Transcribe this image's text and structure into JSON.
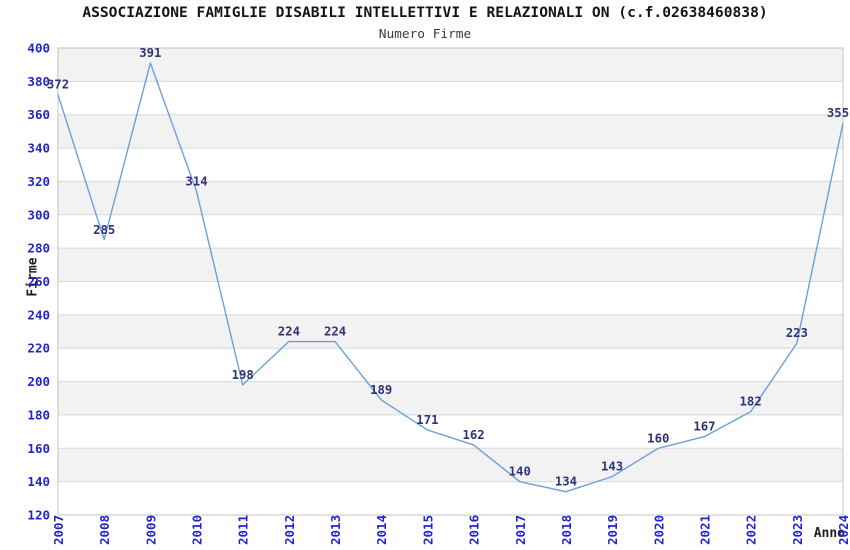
{
  "header": {
    "title": "ASSOCIAZIONE FAMIGLIE DISABILI INTELLETTIVI E RELAZIONALI ON (c.f.02638460838)",
    "subtitle": "Numero Firme"
  },
  "chart_data": {
    "type": "line",
    "title": "ASSOCIAZIONE FAMIGLIE DISABILI INTELLETTIVI E RELAZIONALI ON (c.f.02638460838)",
    "subtitle": "Numero Firme",
    "xlabel": "Anno",
    "ylabel": "Firme",
    "categories": [
      "2007",
      "2008",
      "2009",
      "2010",
      "2011",
      "2012",
      "2013",
      "2014",
      "2015",
      "2016",
      "2017",
      "2018",
      "2019",
      "2020",
      "2021",
      "2022",
      "2023",
      "2024"
    ],
    "series": [
      {
        "name": "Numero Firme",
        "values": [
          372,
          285,
          391,
          314,
          198,
          224,
          224,
          189,
          171,
          162,
          140,
          134,
          143,
          160,
          167,
          182,
          223,
          355
        ]
      }
    ],
    "ylim": [
      120,
      400
    ],
    "ytick_step": 20,
    "x_tick_rotation": -90,
    "grid": "horizontal-bands",
    "legend": "none",
    "point_labels_visible": true,
    "colors": {
      "line": "#6aa1dc",
      "tick_label": "#2424cc",
      "point_label": "#303377",
      "band": "#f2f2f2",
      "grid_line": "#d9d9d9",
      "plot_border": "#c3c3c3",
      "background": "#ffffff"
    }
  }
}
